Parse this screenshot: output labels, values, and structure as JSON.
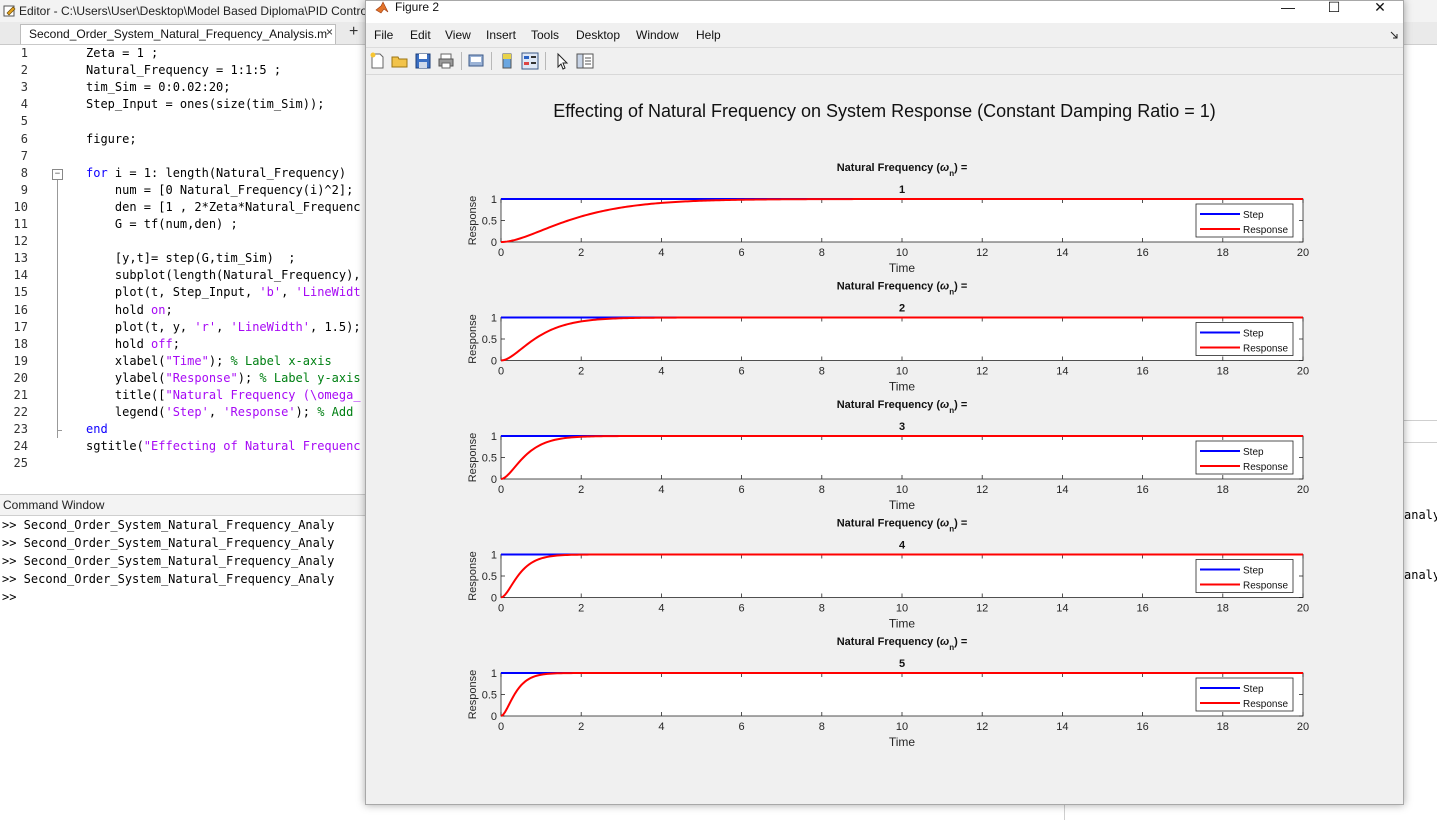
{
  "editor": {
    "title": "Editor - C:\\Users\\User\\Desktop\\Model Based Diploma\\PID Contro",
    "tab_label": "Second_Order_System_Natural_Frequency_Analysis.m",
    "tab_close": "×",
    "tab_add": "+",
    "code_lines": [
      {
        "n": "1",
        "t": "Zeta = 1 ;"
      },
      {
        "n": "2",
        "t": "Natural_Frequency = 1:1:5 ;"
      },
      {
        "n": "3",
        "t": "tim_Sim = 0:0.02:20;"
      },
      {
        "n": "4",
        "t": "Step_Input = ones(size(tim_Sim));"
      },
      {
        "n": "5",
        "t": ""
      },
      {
        "n": "6",
        "t": "figure;"
      },
      {
        "n": "7",
        "t": ""
      },
      {
        "n": "8",
        "t": "<span class=\"kw\">for</span> i = 1: length(Natural_Frequency)"
      },
      {
        "n": "9",
        "t": "    num = [0 Natural_Frequency(i)^2];"
      },
      {
        "n": "10",
        "t": "    den = [1 , 2*Zeta*Natural_Frequenc"
      },
      {
        "n": "11",
        "t": "    G = tf(num,den) ;"
      },
      {
        "n": "12",
        "t": ""
      },
      {
        "n": "13",
        "t": "    [y,t]= step(G,tim_Sim)  ;"
      },
      {
        "n": "14",
        "t": "    subplot(length(Natural_Frequency),"
      },
      {
        "n": "15",
        "t": "    plot(t, Step_Input, <span class=\"str\">'b'</span>, <span class=\"str\">'LineWidt</span>"
      },
      {
        "n": "16",
        "t": "    hold <span class=\"str\">on</span>;"
      },
      {
        "n": "17",
        "t": "    plot(t, y, <span class=\"str\">'r'</span>, <span class=\"str\">'LineWidth'</span>, 1.5);"
      },
      {
        "n": "18",
        "t": "    hold <span class=\"str\">off</span>;"
      },
      {
        "n": "19",
        "t": "    xlabel(<span class=\"str\">\"Time\"</span>); <span class=\"cm\">% Label x-axis</span>"
      },
      {
        "n": "20",
        "t": "    ylabel(<span class=\"str\">\"Response\"</span>); <span class=\"cm\">% Label y-axis</span>"
      },
      {
        "n": "21",
        "t": "    title([<span class=\"str\">\"Natural Frequency (\\omega_</span>"
      },
      {
        "n": "22",
        "t": "    legend(<span class=\"str\">'Step'</span>, <span class=\"str\">'Response'</span>); <span class=\"cm\">% Add</span>"
      },
      {
        "n": "23",
        "t": "<span class=\"kw\">end</span>"
      },
      {
        "n": "24",
        "t": "sgtitle(<span class=\"str\">\"Effecting of Natural Frequenc</span>"
      },
      {
        "n": "25",
        "t": ""
      }
    ]
  },
  "command_window": {
    "title": "Command Window",
    "lines": [
      ">> Second_Order_System_Natural_Frequency_Analy",
      ">> Second_Order_System_Natural_Frequency_Analy",
      ">> Second_Order_System_Natural_Frequency_Analy",
      ">> Second_Order_System_Natural_Frequency_Analy",
      ">>"
    ],
    "behind_text": [
      "analy",
      "analy"
    ]
  },
  "figure": {
    "title": "Figure 2",
    "menu": [
      "File",
      "Edit",
      "View",
      "Insert",
      "Tools",
      "Desktop",
      "Window",
      "Help"
    ],
    "toolbar_icons": [
      "new-figure-icon",
      "open-file-icon",
      "save-icon",
      "print-icon",
      "print-preview-icon",
      "colorbar-icon",
      "legend-icon",
      "edit-plot-icon",
      "property-inspector-icon"
    ],
    "window_buttons": {
      "minimize": "—",
      "maximize": "☐",
      "close": "✕"
    },
    "sgtitle": "Effecting of Natural Frequency on System Response (Constant Damping Ratio = 1)"
  },
  "chart_data": [
    {
      "type": "line",
      "title": "Natural Frequency (ω_n) = 1",
      "wn": 1,
      "zeta": 1,
      "xlabel": "Time",
      "ylabel": "Response",
      "xlim": [
        0,
        20
      ],
      "ylim": [
        0,
        1
      ],
      "xticks": [
        0,
        2,
        4,
        6,
        8,
        10,
        12,
        14,
        16,
        18,
        20
      ],
      "yticks": [
        0,
        0.5,
        1
      ],
      "legend": [
        "Step",
        "Response"
      ],
      "legend_position": "right",
      "series": [
        {
          "name": "Step",
          "color": "#0000ff",
          "values": "constant 1"
        },
        {
          "name": "Response",
          "color": "#ff0000",
          "formula": "1-(1+wn*t)*exp(-wn*t)"
        }
      ]
    },
    {
      "type": "line",
      "title": "Natural Frequency (ω_n) = 2",
      "wn": 2,
      "zeta": 1,
      "xlabel": "Time",
      "ylabel": "Response",
      "xlim": [
        0,
        20
      ],
      "ylim": [
        0,
        1
      ],
      "xticks": [
        0,
        2,
        4,
        6,
        8,
        10,
        12,
        14,
        16,
        18,
        20
      ],
      "yticks": [
        0,
        0.5,
        1
      ],
      "legend": [
        "Step",
        "Response"
      ],
      "legend_position": "right",
      "series": [
        {
          "name": "Step",
          "color": "#0000ff",
          "values": "constant 1"
        },
        {
          "name": "Response",
          "color": "#ff0000",
          "formula": "1-(1+wn*t)*exp(-wn*t)"
        }
      ]
    },
    {
      "type": "line",
      "title": "Natural Frequency (ω_n) = 3",
      "wn": 3,
      "zeta": 1,
      "xlabel": "Time",
      "ylabel": "Response",
      "xlim": [
        0,
        20
      ],
      "ylim": [
        0,
        1
      ],
      "xticks": [
        0,
        2,
        4,
        6,
        8,
        10,
        12,
        14,
        16,
        18,
        20
      ],
      "yticks": [
        0,
        0.5,
        1
      ],
      "legend": [
        "Step",
        "Response"
      ],
      "legend_position": "right",
      "series": [
        {
          "name": "Step",
          "color": "#0000ff",
          "values": "constant 1"
        },
        {
          "name": "Response",
          "color": "#ff0000",
          "formula": "1-(1+wn*t)*exp(-wn*t)"
        }
      ]
    },
    {
      "type": "line",
      "title": "Natural Frequency (ω_n) = 4",
      "wn": 4,
      "zeta": 1,
      "xlabel": "Time",
      "ylabel": "Response",
      "xlim": [
        0,
        20
      ],
      "ylim": [
        0,
        1
      ],
      "xticks": [
        0,
        2,
        4,
        6,
        8,
        10,
        12,
        14,
        16,
        18,
        20
      ],
      "yticks": [
        0,
        0.5,
        1
      ],
      "legend": [
        "Step",
        "Response"
      ],
      "legend_position": "right",
      "series": [
        {
          "name": "Step",
          "color": "#0000ff",
          "values": "constant 1"
        },
        {
          "name": "Response",
          "color": "#ff0000",
          "formula": "1-(1+wn*t)*exp(-wn*t)"
        }
      ]
    },
    {
      "type": "line",
      "title": "Natural Frequency (ω_n) = 5",
      "wn": 5,
      "zeta": 1,
      "xlabel": "Time",
      "ylabel": "Response",
      "xlim": [
        0,
        20
      ],
      "ylim": [
        0,
        1
      ],
      "xticks": [
        0,
        2,
        4,
        6,
        8,
        10,
        12,
        14,
        16,
        18,
        20
      ],
      "yticks": [
        0,
        0.5,
        1
      ],
      "legend": [
        "Step",
        "Response"
      ],
      "legend_position": "right",
      "series": [
        {
          "name": "Step",
          "color": "#0000ff",
          "values": "constant 1"
        },
        {
          "name": "Response",
          "color": "#ff0000",
          "formula": "1-(1+wn*t)*exp(-wn*t)"
        }
      ]
    }
  ]
}
